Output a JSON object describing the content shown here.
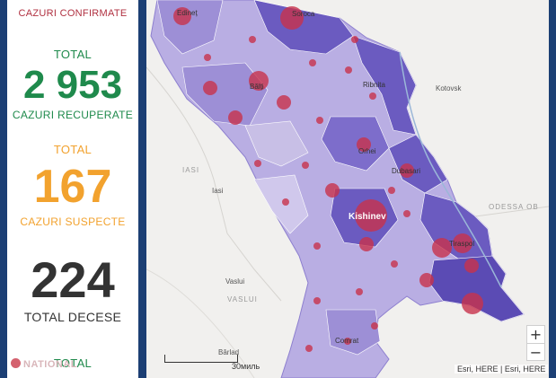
{
  "colors": {
    "confirmed_label": "#b03040",
    "recovered": "#1f8a4c",
    "suspect": "#f2a22e",
    "deaths": "#333333",
    "frame": "#1c3f74",
    "district_light": "#c8bfe6",
    "district_mid": "#9d8fd6",
    "district_dark": "#6b5bc0",
    "bubble": "#c8324b"
  },
  "panel": {
    "confirmed_label": "CAZURI CONFIRMATE",
    "recovered_total_label": "TOTAL",
    "recovered_value": "2 953",
    "recovered_label": "CAZURI RECUPERATE",
    "suspect_total_label": "TOTAL",
    "suspect_value": "167",
    "suspect_label": "CAZURI SUSPECTE",
    "deaths_value": "224",
    "deaths_label": "TOTAL DECESE",
    "next_total_label": "TOTAL"
  },
  "map": {
    "places": {
      "edinet": "Edineț",
      "soroca": "Soroca",
      "balti": "Bălți",
      "ribnita": "Ribnita",
      "kotovsk": "Kotovsk",
      "orhei": "Orhei",
      "dubasari": "Dubasari",
      "iasi_upper": "IASI",
      "iasi": "Iasi",
      "kishinev": "Kishinev",
      "tiraspol": "Tiraspol",
      "odessa": "ODESSA OB",
      "vaslui": "Vaslui",
      "vaslui_upper": "VASLUI",
      "comrat": "Comrat",
      "birlad": "Bârlad"
    },
    "scale_label": "30миль",
    "attribution": "Esri, HERE | Esri, HERE",
    "zoom_in": "+",
    "zoom_out": "−"
  },
  "brand": {
    "logo_text": "NATIONAL"
  }
}
